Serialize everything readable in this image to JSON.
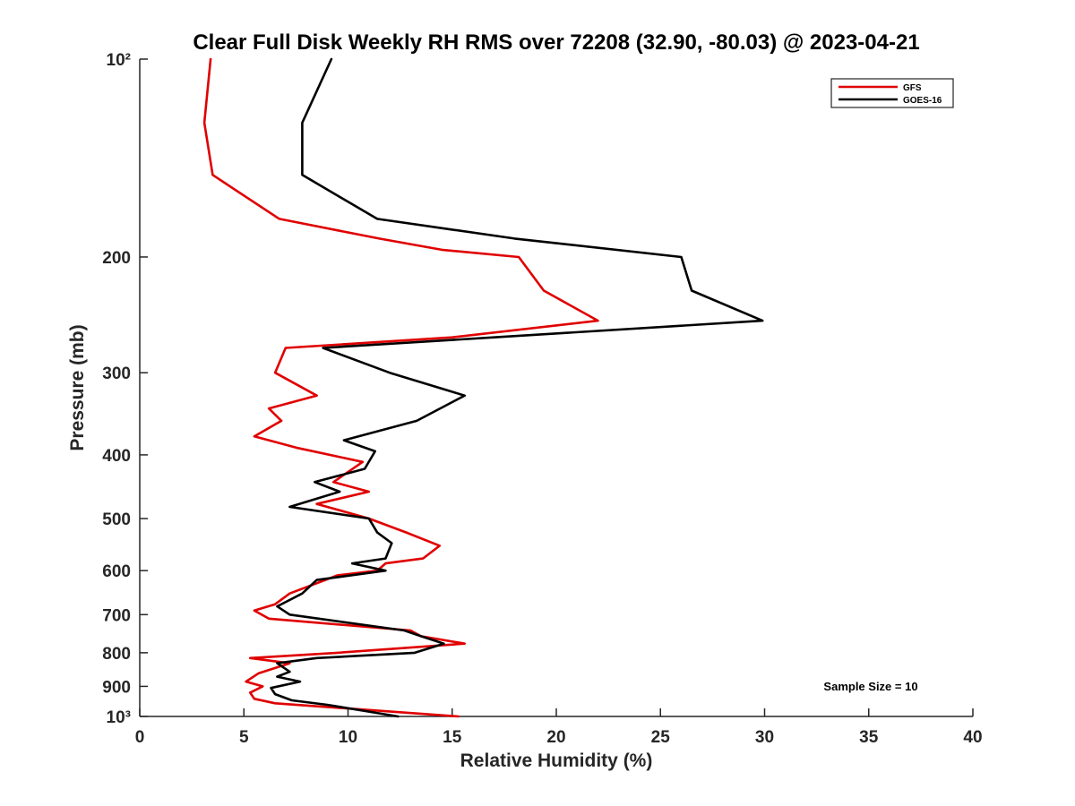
{
  "chart_data": {
    "type": "line",
    "title": "Clear Full Disk Weekly RH RMS over 72208 (32.90, -80.03) @ 2023-04-21",
    "xlabel": "Relative Humidity (%)",
    "ylabel": "Pressure (mb)",
    "xlim": [
      0,
      40
    ],
    "ylim": [
      100,
      1000
    ],
    "y_scale": "log",
    "y_reversed": true,
    "x_ticks": [
      0,
      5,
      10,
      15,
      20,
      25,
      30,
      35,
      40
    ],
    "x_tick_labels": [
      "0",
      "5",
      "10",
      "15",
      "20",
      "25",
      "30",
      "35",
      "40"
    ],
    "y_ticks": [
      100,
      200,
      300,
      400,
      500,
      600,
      700,
      800,
      900,
      1000
    ],
    "y_tick_labels": [
      "10²",
      "200",
      "300",
      "400",
      "500",
      "600",
      "700",
      "800",
      "900",
      "10³"
    ],
    "grid": false,
    "legend_position": "top-right",
    "annotation": "Sample Size = 10",
    "series": [
      {
        "name": "GFS",
        "color": "#e00000",
        "points": [
          [
            3.4,
            100
          ],
          [
            3.1,
            125
          ],
          [
            3.5,
            150
          ],
          [
            6.7,
            175
          ],
          [
            11.5,
            187.5
          ],
          [
            14.5,
            195
          ],
          [
            18.2,
            200
          ],
          [
            19.4,
            225
          ],
          [
            22.0,
            250
          ],
          [
            15.0,
            265
          ],
          [
            7.0,
            275
          ],
          [
            6.5,
            300
          ],
          [
            8.5,
            325
          ],
          [
            6.2,
            340
          ],
          [
            6.8,
            355
          ],
          [
            5.5,
            375
          ],
          [
            7.5,
            390
          ],
          [
            10.7,
            410
          ],
          [
            9.3,
            440
          ],
          [
            11.0,
            455
          ],
          [
            8.5,
            475
          ],
          [
            11.0,
            500
          ],
          [
            12.8,
            525
          ],
          [
            14.4,
            550
          ],
          [
            13.6,
            575
          ],
          [
            11.8,
            585
          ],
          [
            11.4,
            600
          ],
          [
            9.5,
            610
          ],
          [
            7.2,
            650
          ],
          [
            6.5,
            675
          ],
          [
            5.5,
            690
          ],
          [
            6.2,
            710
          ],
          [
            13.0,
            740
          ],
          [
            13.5,
            755
          ],
          [
            15.6,
            775
          ],
          [
            9.5,
            800
          ],
          [
            5.3,
            815
          ],
          [
            7.2,
            830
          ],
          [
            5.7,
            860
          ],
          [
            5.1,
            885
          ],
          [
            5.9,
            900
          ],
          [
            5.3,
            920
          ],
          [
            5.5,
            940
          ],
          [
            6.5,
            955
          ],
          [
            9.5,
            970
          ],
          [
            15.3,
            1000
          ]
        ]
      },
      {
        "name": "GOES-16",
        "color": "#000000",
        "points": [
          [
            9.2,
            100
          ],
          [
            7.8,
            125
          ],
          [
            7.8,
            150
          ],
          [
            11.4,
            175
          ],
          [
            18.0,
            187.5
          ],
          [
            26.0,
            200
          ],
          [
            26.5,
            225
          ],
          [
            29.9,
            250
          ],
          [
            17.0,
            265
          ],
          [
            8.8,
            275
          ],
          [
            12.0,
            300
          ],
          [
            15.6,
            325
          ],
          [
            13.3,
            355
          ],
          [
            9.8,
            380
          ],
          [
            11.3,
            395
          ],
          [
            10.8,
            420
          ],
          [
            8.4,
            440
          ],
          [
            9.6,
            455
          ],
          [
            7.2,
            480
          ],
          [
            11.0,
            500
          ],
          [
            11.4,
            525
          ],
          [
            12.1,
            545
          ],
          [
            11.8,
            575
          ],
          [
            10.2,
            585
          ],
          [
            11.8,
            600
          ],
          [
            8.5,
            620
          ],
          [
            7.8,
            650
          ],
          [
            6.6,
            680
          ],
          [
            7.2,
            700
          ],
          [
            12.7,
            740
          ],
          [
            13.5,
            755
          ],
          [
            14.6,
            775
          ],
          [
            13.2,
            800
          ],
          [
            8.5,
            815
          ],
          [
            6.6,
            830
          ],
          [
            7.2,
            855
          ],
          [
            6.6,
            870
          ],
          [
            7.7,
            885
          ],
          [
            6.3,
            905
          ],
          [
            6.5,
            925
          ],
          [
            7.3,
            945
          ],
          [
            9.0,
            960
          ],
          [
            12.4,
            1000
          ]
        ]
      }
    ]
  }
}
